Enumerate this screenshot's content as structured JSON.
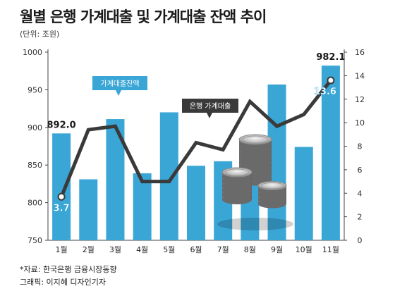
{
  "title": "월별 은행 가계대출 및 가계대출 잔액 추이",
  "unit": "(단위: 조원)",
  "source": "*자료: 한국은행 금융시장동향",
  "credit": "그래픽: 이지혜 디자인기자",
  "colors": {
    "bar": "#3aa6d6",
    "line": "#3a3a3a",
    "callout": "#3aa6d6",
    "text": "#1a1a1a"
  },
  "chart_data": {
    "type": "bar+line",
    "categories": [
      "1월",
      "2월",
      "3월",
      "4월",
      "5월",
      "6월",
      "7월",
      "8월",
      "9월",
      "10월",
      "11월"
    ],
    "series": [
      {
        "name": "가계대출잔액",
        "type": "bar",
        "axis": "left",
        "values": [
          892.0,
          831,
          911,
          839,
          920,
          849,
          855,
          862,
          957,
          874,
          982.1
        ]
      },
      {
        "name": "은행 가계대출",
        "type": "line",
        "axis": "right",
        "values": [
          3.7,
          9.4,
          9.7,
          5.0,
          5.0,
          8.3,
          7.7,
          11.8,
          9.7,
          10.7,
          13.6
        ]
      }
    ],
    "left_axis": {
      "min": 750,
      "max": 1000,
      "ticks": [
        750,
        800,
        850,
        900,
        950,
        1000
      ]
    },
    "right_axis": {
      "min": 0,
      "max": 16,
      "ticks": [
        0,
        2,
        4,
        6,
        8,
        10,
        12,
        14,
        16
      ]
    },
    "annotations": [
      {
        "series": "bar",
        "index": 0,
        "text": "892.0"
      },
      {
        "series": "bar",
        "index": 10,
        "text": "982.1"
      },
      {
        "series": "line",
        "index": 0,
        "text": "3.7"
      },
      {
        "series": "line",
        "index": 10,
        "text": "13.6"
      }
    ],
    "callouts": {
      "bar": "가계대출잔액",
      "line": "은행 가계대출"
    }
  }
}
